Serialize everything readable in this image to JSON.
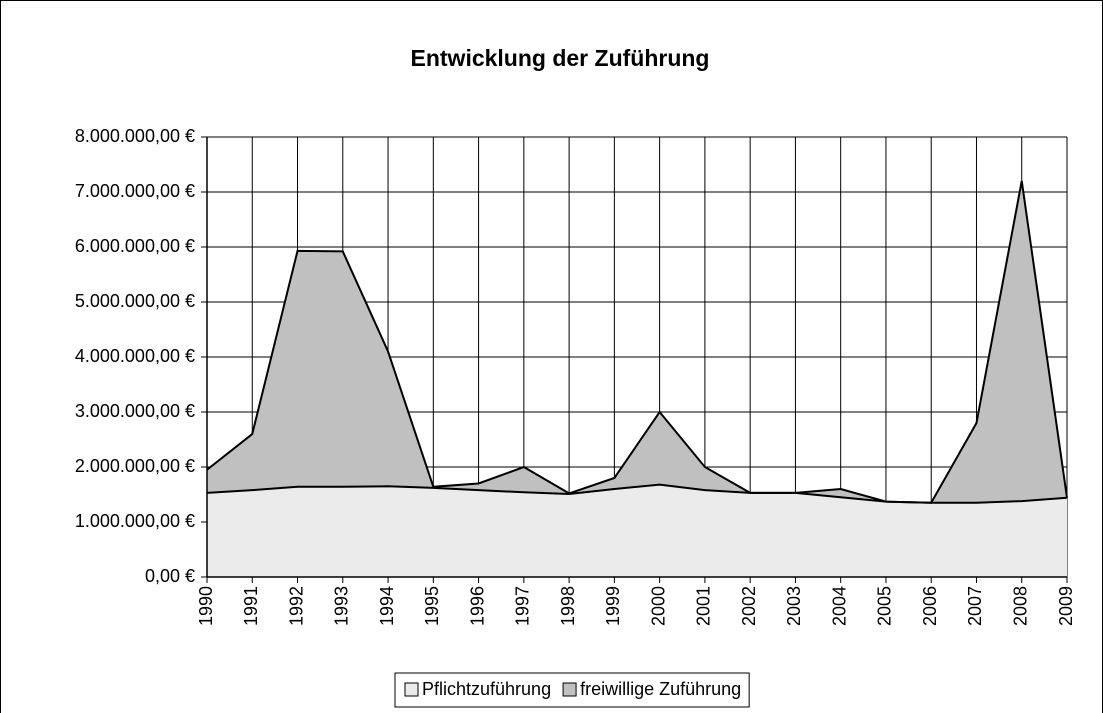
{
  "chart_data": {
    "type": "stacked_area",
    "title": "Entwicklung der Zuführung",
    "categories": [
      "1990",
      "1991",
      "1992",
      "1993",
      "1994",
      "1995",
      "1996",
      "1997",
      "1998",
      "1999",
      "2000",
      "2001",
      "2002",
      "2003",
      "2004",
      "2005",
      "2006",
      "2007",
      "2008",
      "2009"
    ],
    "series": [
      {
        "name": "Pflichtzuführung",
        "color": "#ebebeb",
        "values": [
          1530000,
          1580000,
          1640000,
          1640000,
          1650000,
          1620000,
          1580000,
          1540000,
          1510000,
          1600000,
          1680000,
          1580000,
          1530000,
          1530000,
          1450000,
          1370000,
          1350000,
          1350000,
          1380000,
          1440000
        ]
      },
      {
        "name": "freiwillige Zuführung",
        "color": "#c0c0c0",
        "values": [
          420000,
          1020000,
          4290000,
          4280000,
          2450000,
          20000,
          120000,
          460000,
          10000,
          200000,
          1320000,
          420000,
          0,
          0,
          150000,
          0,
          0,
          1450000,
          5820000,
          0
        ]
      }
    ],
    "ylim": [
      0,
      8000000
    ],
    "yticks": [
      {
        "value": 0,
        "label": "0,00 €"
      },
      {
        "value": 1000000,
        "label": "1.000.000,00 €"
      },
      {
        "value": 2000000,
        "label": "2.000.000,00 €"
      },
      {
        "value": 3000000,
        "label": "3.000.000,00 €"
      },
      {
        "value": 4000000,
        "label": "4.000.000,00 €"
      },
      {
        "value": 5000000,
        "label": "5.000.000,00 €"
      },
      {
        "value": 6000000,
        "label": "6.000.000,00 €"
      },
      {
        "value": 7000000,
        "label": "7.000.000,00 €"
      },
      {
        "value": 8000000,
        "label": "8.000.000,00 €"
      }
    ],
    "grid": true,
    "legend": "bottom"
  }
}
